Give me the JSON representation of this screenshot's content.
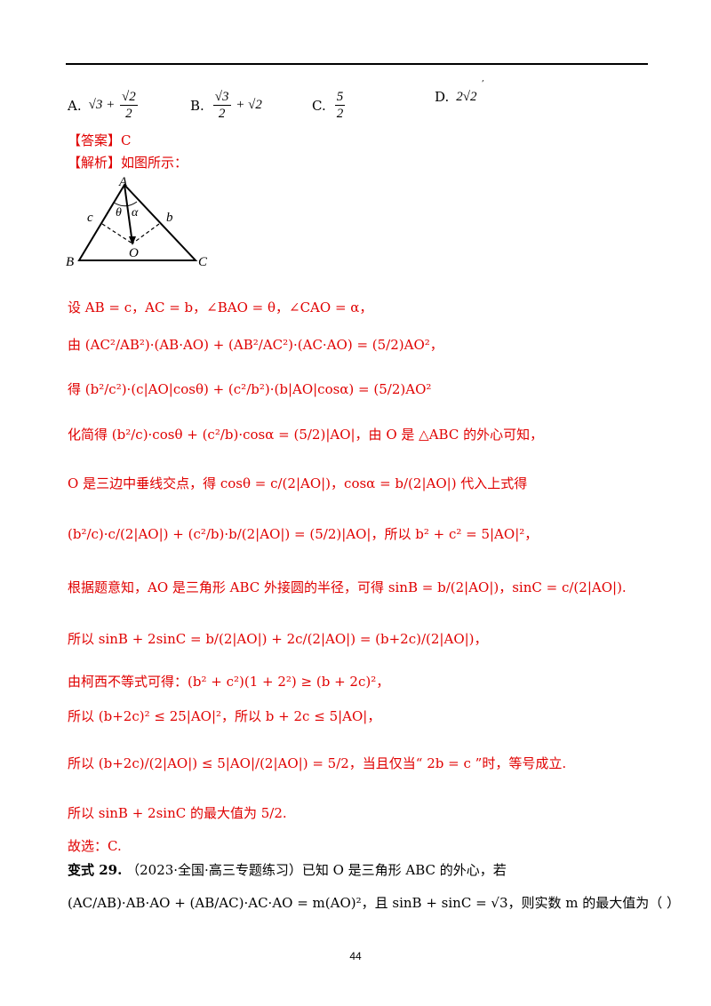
{
  "page_number": "44",
  "options": [
    {
      "letter": "A.",
      "expr": "√3 + √2/2"
    },
    {
      "letter": "B.",
      "expr": "√3/2 + √2"
    },
    {
      "letter": "C.",
      "expr": "5/2"
    },
    {
      "letter": "D.",
      "expr": "2√2"
    }
  ],
  "answer_label": "【答案】C",
  "analysis_label": "【解析】如图所示：",
  "figure": {
    "vertex_a": "A",
    "vertex_b": "B",
    "vertex_c": "C",
    "center_o": "O",
    "side_c": "c",
    "side_b": "b",
    "angle_theta": "θ",
    "angle_alpha": "α"
  },
  "steps": {
    "s1": "设 AB = c，AC = b，∠BAO = θ，∠CAO = α，",
    "s2": "由 (AC²/AB²)·(AB·AO) + (AB²/AC²)·(AC·AO) = (5/2)AO²，",
    "s3": "得 (b²/c²)·(c|AO|cosθ) + (c²/b²)·(b|AO|cosα) = (5/2)AO²",
    "s4": "化简得 (b²/c)·cosθ + (c²/b)·cosα = (5/2)|AO|，由 O 是 △ABC 的外心可知，",
    "s5": "O 是三边中垂线交点，得 cosθ = c/(2|AO|)，cosα = b/(2|AO|) 代入上式得",
    "s6": "(b²/c)·c/(2|AO|) + (c²/b)·b/(2|AO|) = (5/2)|AO|，所以 b² + c² = 5|AO|²，",
    "s7": "根据题意知，AO 是三角形 ABC 外接圆的半径，可得 sinB = b/(2|AO|)，sinC = c/(2|AO|).",
    "s8": "所以 sinB + 2sinC = b/(2|AO|) + 2c/(2|AO|) = (b+2c)/(2|AO|)，",
    "s9": "由柯西不等式可得：(b² + c²)(1 + 2²) ≥ (b + 2c)²，",
    "s10": "所以 (b+2c)² ≤ 25|AO|²，所以 b + 2c ≤ 5|AO|，",
    "s11": "所以 (b+2c)/(2|AO|) ≤ 5|AO|/(2|AO|) = 5/2，当且仅当“ 2b = c ”时，等号成立.",
    "s12": "所以 sinB + 2sinC 的最大值为 5/2.",
    "s13": "故选：C."
  },
  "variant": {
    "label": "变式 29.",
    "line1": "（2023·全国·高三专题练习）已知 O 是三角形 ABC 的外心，若",
    "line2": "(AC/AB)·AB·AO + (AB/AC)·AC·AO = m(AO)²，且 sinB + sinC = √3，则实数 m 的最大值为（ ）"
  }
}
